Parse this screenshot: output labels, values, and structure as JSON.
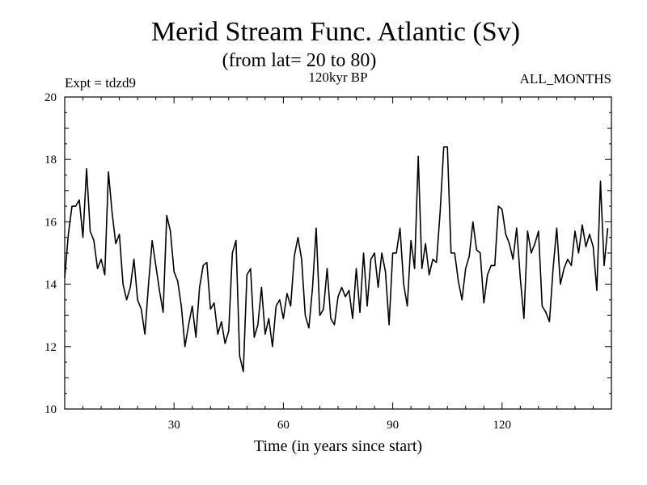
{
  "chart_data": {
    "type": "line",
    "title": "Merid Stream Func. Atlantic (Sv)",
    "subtitle": "(from lat= 20 to 80)",
    "label_left": "Expt = tdzd9",
    "label_center": "120kyr BP",
    "label_right": "ALL_MONTHS",
    "xlabel": "Time (in years since start)",
    "ylabel": "",
    "xlim": [
      0,
      150
    ],
    "ylim": [
      10,
      20
    ],
    "xticks": [
      30,
      60,
      90,
      120
    ],
    "yticks": [
      10,
      12,
      14,
      16,
      18,
      20
    ],
    "grid": false,
    "series": [
      {
        "name": "Merid Stream Func. Atlantic",
        "x_start": 0,
        "x_step": 1,
        "values": [
          14.2,
          15.6,
          16.5,
          16.5,
          16.7,
          15.5,
          17.7,
          15.7,
          15.4,
          14.5,
          14.8,
          14.3,
          17.6,
          16.3,
          15.3,
          15.6,
          14.0,
          13.5,
          13.9,
          14.8,
          13.5,
          13.2,
          12.4,
          14.0,
          15.4,
          14.6,
          13.8,
          13.1,
          16.2,
          15.7,
          14.4,
          14.1,
          13.3,
          12.0,
          12.7,
          13.3,
          12.3,
          13.9,
          14.6,
          14.7,
          13.2,
          13.4,
          12.4,
          12.8,
          12.1,
          12.5,
          15.0,
          15.4,
          11.7,
          11.2,
          14.3,
          14.5,
          12.3,
          12.7,
          13.9,
          12.4,
          12.9,
          12.0,
          13.3,
          13.5,
          12.9,
          13.7,
          13.3,
          14.9,
          15.5,
          14.8,
          13.0,
          12.6,
          13.9,
          15.8,
          13.0,
          13.2,
          14.5,
          12.9,
          12.7,
          13.6,
          13.9,
          13.6,
          13.8,
          12.9,
          14.5,
          13.1,
          15.0,
          13.3,
          14.8,
          15.0,
          13.9,
          15.0,
          14.4,
          12.7,
          15.0,
          15.0,
          15.8,
          14.0,
          13.3,
          15.4,
          14.5,
          18.1,
          14.5,
          15.3,
          14.3,
          14.8,
          14.7,
          16.3,
          18.4,
          18.4,
          15.0,
          15.0,
          14.1,
          13.5,
          14.5,
          14.9,
          16.0,
          15.1,
          15.0,
          13.4,
          14.3,
          14.6,
          14.6,
          16.5,
          16.4,
          15.6,
          15.3,
          14.8,
          15.8,
          14.2,
          12.9,
          15.7,
          15.0,
          15.3,
          15.7,
          13.3,
          13.1,
          12.8,
          14.5,
          15.8,
          14.0,
          14.5,
          14.8,
          14.6,
          15.7,
          15.0,
          15.9,
          15.2,
          15.6,
          15.2,
          13.8,
          17.3,
          14.6,
          15.8
        ]
      }
    ]
  }
}
